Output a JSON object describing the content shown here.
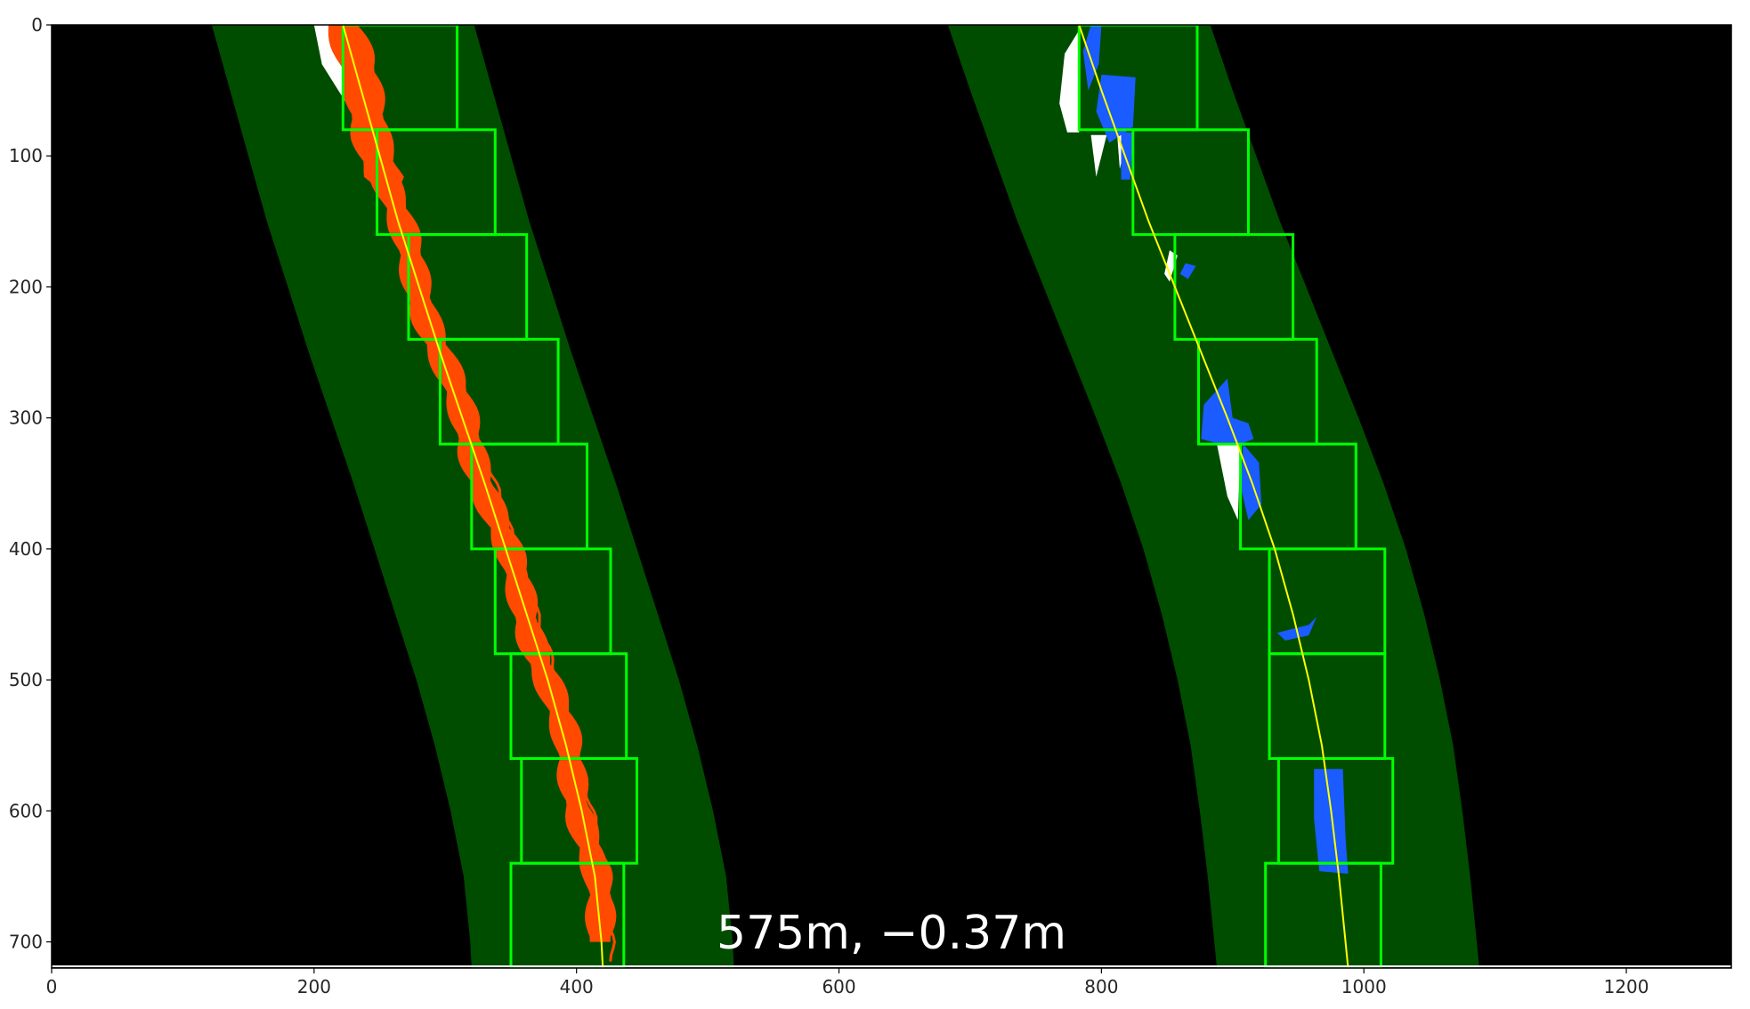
{
  "chart_data": {
    "type": "image",
    "image_width": 1280,
    "image_height": 720,
    "xlim": [
      0,
      1280
    ],
    "ylim": [
      720,
      0
    ],
    "x_ticks": [
      0,
      200,
      400,
      600,
      800,
      1000,
      1200
    ],
    "y_ticks": [
      0,
      100,
      200,
      300,
      400,
      500,
      600,
      700
    ],
    "x_tick_labels": [
      "0",
      "200",
      "400",
      "600",
      "800",
      "1000",
      "1200"
    ],
    "y_tick_labels": [
      "0",
      "100",
      "200",
      "300",
      "400",
      "500",
      "600",
      "700"
    ],
    "overlay_text": "575m, −0.37m",
    "margin": 100,
    "lanes": [
      {
        "name": "left",
        "pixel_color": "#ff4a00",
        "fit_points": [
          [
            222,
            0
          ],
          [
            236,
            50
          ],
          [
            250,
            100
          ],
          [
            264,
            150
          ],
          [
            280,
            200
          ],
          [
            296,
            250
          ],
          [
            313,
            300
          ],
          [
            330,
            350
          ],
          [
            346,
            400
          ],
          [
            362,
            450
          ],
          [
            378,
            500
          ],
          [
            392,
            550
          ],
          [
            404,
            600
          ],
          [
            414,
            650
          ],
          [
            419,
            700
          ],
          [
            420,
            720
          ]
        ],
        "windows": [
          {
            "x0": 222,
            "x1": 309,
            "y0": 0,
            "y1": 80
          },
          {
            "x0": 248,
            "x1": 338,
            "y0": 80,
            "y1": 160
          },
          {
            "x0": 272,
            "x1": 362,
            "y0": 160,
            "y1": 240
          },
          {
            "x0": 296,
            "x1": 386,
            "y0": 240,
            "y1": 320
          },
          {
            "x0": 320,
            "x1": 408,
            "y0": 320,
            "y1": 400
          },
          {
            "x0": 338,
            "x1": 426,
            "y0": 400,
            "y1": 480
          },
          {
            "x0": 350,
            "x1": 438,
            "y0": 480,
            "y1": 560
          },
          {
            "x0": 358,
            "x1": 446,
            "y0": 560,
            "y1": 640
          },
          {
            "x0": 350,
            "x1": 436,
            "y0": 640,
            "y1": 720
          }
        ]
      },
      {
        "name": "right",
        "pixel_color": "#1a5cff",
        "fit_points": [
          [
            783,
            0
          ],
          [
            800,
            50
          ],
          [
            818,
            100
          ],
          [
            836,
            150
          ],
          [
            856,
            200
          ],
          [
            876,
            250
          ],
          [
            896,
            300
          ],
          [
            915,
            350
          ],
          [
            932,
            400
          ],
          [
            946,
            450
          ],
          [
            958,
            500
          ],
          [
            968,
            550
          ],
          [
            975,
            600
          ],
          [
            981,
            650
          ],
          [
            986,
            700
          ],
          [
            988,
            720
          ]
        ],
        "windows": [
          {
            "x0": 783,
            "x1": 873,
            "y0": 0,
            "y1": 80
          },
          {
            "x0": 824,
            "x1": 912,
            "y0": 80,
            "y1": 160
          },
          {
            "x0": 856,
            "x1": 946,
            "y0": 160,
            "y1": 240
          },
          {
            "x0": 874,
            "x1": 964,
            "y0": 240,
            "y1": 320
          },
          {
            "x0": 906,
            "x1": 994,
            "y0": 320,
            "y1": 400
          },
          {
            "x0": 928,
            "x1": 1016,
            "y0": 400,
            "y1": 480
          },
          {
            "x0": 928,
            "x1": 1016,
            "y0": 480,
            "y1": 560
          },
          {
            "x0": 935,
            "x1": 1022,
            "y0": 560,
            "y1": 640
          },
          {
            "x0": 925,
            "x1": 1013,
            "y0": 640,
            "y1": 720
          }
        ]
      }
    ],
    "colors": {
      "background": "#000000",
      "search_band": "#004d00",
      "window_outline": "#00ff00",
      "fit_line": "#ffff00",
      "noise": "#ffffff"
    }
  }
}
